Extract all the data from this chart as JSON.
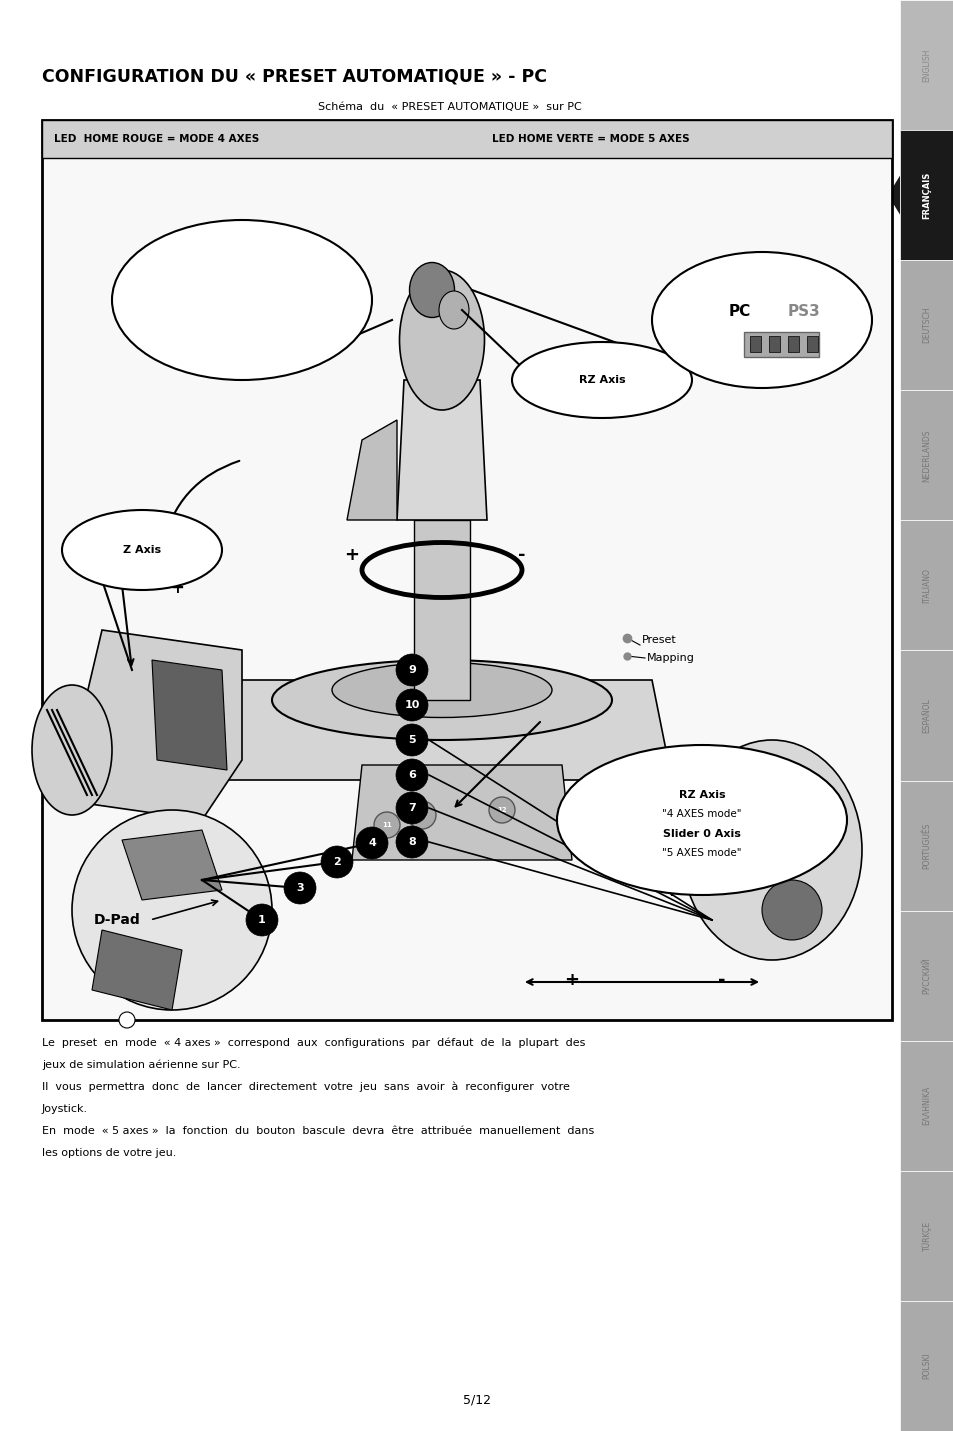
{
  "bg_color": "#ffffff",
  "page_width": 9.54,
  "page_height": 14.31,
  "title_plain": "CONFIGURATION DU ",
  "title_bold": "« PRESET AUTOMATIQUE »",
  "title_end": " - PC",
  "subtitle": "Schéma  du  « PRESET AUTOMATIQUE »  sur PC",
  "led_left": "LED  HOME ROUGE = MODE 4 AXES",
  "led_right": "LED HOME VERTE = MODE 5 AXES",
  "para1_line1": "Le  preset  en  mode  « 4 axes »  correspond  aux  configurations  par  défaut  de  la  plupart  des",
  "para1_line2": "jeux de simulation aérienne sur PC.",
  "para2_line1": "Il  vous  permettra  donc  de  lancer  directement  votre  jeu  sans  avoir  à  reconfigurer  votre",
  "para2_line2": "Joystick.",
  "para3_line1": "En  mode  « 5 axes »  la  fonction  du  bouton  bascule  devra  être  attribuée  manuellement  dans",
  "para3_line2": "les options de votre jeu.",
  "page_num": "5/12",
  "sidebar_langs": [
    "ENGLISH",
    "FRANÇAIS",
    "DEUTSCH",
    "NEDERLANDS",
    "ITALIANO",
    "ESPAÑOL",
    "PORTUGUÊS",
    "РУССКИЙ",
    "ΕΛΛΗΝΙΚΑ",
    "TÜRKÇE",
    "POLSKI"
  ],
  "active_lang_idx": 1,
  "sidebar_bg": "#c8c8c8",
  "sidebar_active_bg": "#1a1a1a",
  "sidebar_active_color": "#ffffff",
  "sidebar_inactive_color": "#666666"
}
